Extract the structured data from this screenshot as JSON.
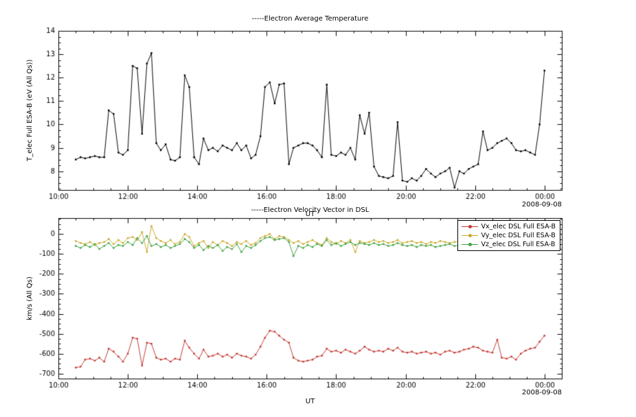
{
  "figure": {
    "background": "#ffffff",
    "frame_color": "#000000"
  },
  "chart_data": [
    {
      "type": "line",
      "title": "-----Electron Average Temperature",
      "xlabel": "UT",
      "ylabel": "T_elec Full ESA-B (eV (All Qs))",
      "date_label": "2008-09-08",
      "xlim": [
        10,
        24.5
      ],
      "ylim": [
        7.2,
        14
      ],
      "xminor": 0.5,
      "yminor": 0.25,
      "grid": false,
      "legend": "none",
      "xticks": [
        10,
        12,
        14,
        16,
        18,
        20,
        22,
        24
      ],
      "xticklabels": [
        "10:00",
        "12:00",
        "14:00",
        "16:00",
        "18:00",
        "20:00",
        "22:00",
        "00:00"
      ],
      "yticks": [
        8,
        9,
        10,
        11,
        12,
        13,
        14
      ],
      "yticklabels": [
        "8",
        "9",
        "10",
        "11",
        "12",
        "13",
        "14"
      ],
      "x": [
        10.5,
        10.64,
        10.77,
        10.91,
        11.05,
        11.18,
        11.32,
        11.45,
        11.59,
        11.73,
        11.86,
        12.0,
        12.14,
        12.27,
        12.41,
        12.55,
        12.68,
        12.82,
        12.95,
        13.09,
        13.23,
        13.36,
        13.5,
        13.64,
        13.77,
        13.91,
        14.05,
        14.18,
        14.32,
        14.45,
        14.59,
        14.73,
        14.86,
        15.0,
        15.14,
        15.27,
        15.41,
        15.55,
        15.68,
        15.82,
        15.95,
        16.09,
        16.23,
        16.36,
        16.5,
        16.64,
        16.77,
        16.91,
        17.05,
        17.18,
        17.32,
        17.45,
        17.59,
        17.73,
        17.86,
        18.0,
        18.14,
        18.27,
        18.41,
        18.55,
        18.68,
        18.82,
        18.95,
        19.09,
        19.23,
        19.36,
        19.5,
        19.64,
        19.77,
        19.91,
        20.05,
        20.18,
        20.32,
        20.45,
        20.59,
        20.73,
        20.86,
        21.0,
        21.14,
        21.27,
        21.41,
        21.55,
        21.68,
        21.82,
        21.95,
        22.09,
        22.23,
        22.36,
        22.5,
        22.64,
        22.77,
        22.91,
        23.05,
        23.18,
        23.32,
        23.45,
        23.59,
        23.73,
        23.86,
        24.0
      ],
      "series": [
        {
          "name": "T_elec Full ESA-B",
          "color": "#000000",
          "marker": "dot",
          "values": [
            8.5,
            8.6,
            8.55,
            8.6,
            8.65,
            8.6,
            8.6,
            10.6,
            10.45,
            8.8,
            8.7,
            8.9,
            12.5,
            12.4,
            9.6,
            12.6,
            13.05,
            9.2,
            8.9,
            9.15,
            8.5,
            8.45,
            8.6,
            12.1,
            11.6,
            8.6,
            8.3,
            9.4,
            8.9,
            9.0,
            8.85,
            9.1,
            9.0,
            8.9,
            9.2,
            8.9,
            9.1,
            8.55,
            8.7,
            9.5,
            11.6,
            11.8,
            10.9,
            11.7,
            11.75,
            8.3,
            9.0,
            9.1,
            9.2,
            9.2,
            9.1,
            8.9,
            8.6,
            11.7,
            8.7,
            8.65,
            8.8,
            8.7,
            9.0,
            8.5,
            10.4,
            9.6,
            10.5,
            8.2,
            7.8,
            7.75,
            7.7,
            7.8,
            10.1,
            7.6,
            7.55,
            7.7,
            7.6,
            7.8,
            8.1,
            7.9,
            7.75,
            7.9,
            8.0,
            8.15,
            7.3,
            8.0,
            7.9,
            8.1,
            8.2,
            8.3,
            9.7,
            8.9,
            9.0,
            9.2,
            9.3,
            9.4,
            9.2,
            8.9,
            8.85,
            8.9,
            8.8,
            8.7,
            10.0,
            12.3
          ]
        }
      ]
    },
    {
      "type": "line",
      "title": "-----Electron Velocity Vector in DSL",
      "xlabel": "UT",
      "ylabel": "km/s (All Qs)",
      "date_label": "2008-09-08",
      "xlim": [
        10,
        24.5
      ],
      "ylim": [
        -725,
        80
      ],
      "xminor": 0.5,
      "yminor": 25,
      "grid": false,
      "legend": "top-right",
      "xticks": [
        10,
        12,
        14,
        16,
        18,
        20,
        22,
        24
      ],
      "xticklabels": [
        "10:00",
        "12:00",
        "14:00",
        "16:00",
        "18:00",
        "20:00",
        "22:00",
        "00:00"
      ],
      "yticks": [
        0,
        -100,
        -200,
        -300,
        -400,
        -500,
        -600,
        -700
      ],
      "yticklabels": [
        "0",
        "-100",
        "-200",
        "-300",
        "-400",
        "-500",
        "-600",
        "-700"
      ],
      "x": [
        10.5,
        10.64,
        10.77,
        10.91,
        11.05,
        11.18,
        11.32,
        11.45,
        11.59,
        11.73,
        11.86,
        12.0,
        12.14,
        12.27,
        12.41,
        12.55,
        12.68,
        12.82,
        12.95,
        13.09,
        13.23,
        13.36,
        13.5,
        13.64,
        13.77,
        13.91,
        14.05,
        14.18,
        14.32,
        14.45,
        14.59,
        14.73,
        14.86,
        15.0,
        15.14,
        15.27,
        15.41,
        15.55,
        15.68,
        15.82,
        15.95,
        16.09,
        16.23,
        16.36,
        16.5,
        16.64,
        16.77,
        16.91,
        17.05,
        17.18,
        17.32,
        17.45,
        17.59,
        17.73,
        17.86,
        18.0,
        18.14,
        18.27,
        18.41,
        18.55,
        18.68,
        18.82,
        18.95,
        19.09,
        19.23,
        19.36,
        19.5,
        19.64,
        19.77,
        19.91,
        20.05,
        20.18,
        20.32,
        20.45,
        20.59,
        20.73,
        20.86,
        21.0,
        21.14,
        21.27,
        21.41,
        21.55,
        21.68,
        21.82,
        21.95,
        22.09,
        22.23,
        22.36,
        22.5,
        22.64,
        22.77,
        22.91,
        23.05,
        23.18,
        23.32,
        23.45,
        23.59,
        23.73,
        23.86,
        24.0
      ],
      "series": [
        {
          "name": "Vx_elec DSL Full ESA-B",
          "color": "#c23b33",
          "marker": "dot",
          "values": [
            -670,
            -665,
            -630,
            -625,
            -635,
            -620,
            -640,
            -575,
            -590,
            -615,
            -640,
            -600,
            -520,
            -525,
            -660,
            -545,
            -550,
            -620,
            -630,
            -625,
            -640,
            -625,
            -630,
            -535,
            -570,
            -600,
            -625,
            -580,
            -615,
            -610,
            -600,
            -615,
            -605,
            -620,
            -600,
            -610,
            -615,
            -625,
            -605,
            -565,
            -520,
            -485,
            -490,
            -510,
            -530,
            -545,
            -620,
            -635,
            -640,
            -635,
            -630,
            -615,
            -610,
            -575,
            -590,
            -585,
            -595,
            -580,
            -590,
            -600,
            -585,
            -565,
            -580,
            -590,
            -585,
            -590,
            -575,
            -585,
            -570,
            -590,
            -595,
            -590,
            -600,
            -595,
            -590,
            -600,
            -595,
            -605,
            -590,
            -585,
            -595,
            -590,
            -580,
            -575,
            -565,
            -570,
            -585,
            -590,
            -595,
            -530,
            -620,
            -625,
            -615,
            -630,
            -600,
            -585,
            -575,
            -570,
            -540,
            -510
          ]
        },
        {
          "name": "Vy_elec DSL Full ESA-B",
          "color": "#c9a92c",
          "marker": "dot",
          "values": [
            -35,
            -45,
            -50,
            -40,
            -55,
            -45,
            -40,
            -25,
            -50,
            -30,
            -45,
            -20,
            -15,
            -30,
            10,
            -90,
            40,
            -20,
            -35,
            -45,
            -30,
            -50,
            -40,
            0,
            -15,
            -60,
            -45,
            -35,
            -70,
            -40,
            -55,
            -35,
            -45,
            -60,
            -40,
            -50,
            -35,
            -55,
            -45,
            -20,
            -10,
            0,
            -25,
            -10,
            -15,
            -30,
            -45,
            -35,
            -50,
            -40,
            -30,
            -45,
            -55,
            -20,
            -40,
            -50,
            -35,
            -45,
            -30,
            -90,
            -35,
            -45,
            -40,
            -30,
            -40,
            -35,
            -45,
            -40,
            -30,
            -45,
            -40,
            -35,
            -45,
            -40,
            -50,
            -40,
            -45,
            -35,
            -40,
            -45,
            -40,
            -35,
            -45,
            -40,
            -35,
            -30,
            -25,
            -40,
            -35,
            -45,
            -30,
            -40,
            -35,
            -45,
            -40,
            -35,
            -40,
            -30,
            -25,
            -20
          ]
        },
        {
          "name": "Vz_elec DSL Full ESA-B",
          "color": "#3fa33f",
          "marker": "dot",
          "values": [
            -60,
            -70,
            -55,
            -65,
            -50,
            -75,
            -60,
            -45,
            -70,
            -55,
            -60,
            -40,
            -55,
            -20,
            -45,
            -10,
            -60,
            -50,
            -65,
            -55,
            -70,
            -60,
            -50,
            -25,
            -40,
            -70,
            -55,
            -80,
            -60,
            -70,
            -55,
            -85,
            -65,
            -75,
            -50,
            -90,
            -60,
            -70,
            -55,
            -35,
            -20,
            -15,
            -30,
            -25,
            -20,
            -40,
            -110,
            -60,
            -70,
            -55,
            -65,
            -50,
            -60,
            -30,
            -55,
            -45,
            -60,
            -50,
            -40,
            -55,
            -45,
            -50,
            -55,
            -45,
            -55,
            -50,
            -60,
            -55,
            -45,
            -55,
            -60,
            -55,
            -65,
            -55,
            -60,
            -55,
            -65,
            -60,
            -55,
            -50,
            -60,
            -55,
            -50,
            -60,
            -55,
            -50,
            -45,
            -55,
            -50,
            -60,
            -50,
            -55,
            -60,
            -50,
            -55,
            -50,
            -55,
            -45,
            -40,
            -35
          ]
        }
      ]
    }
  ]
}
